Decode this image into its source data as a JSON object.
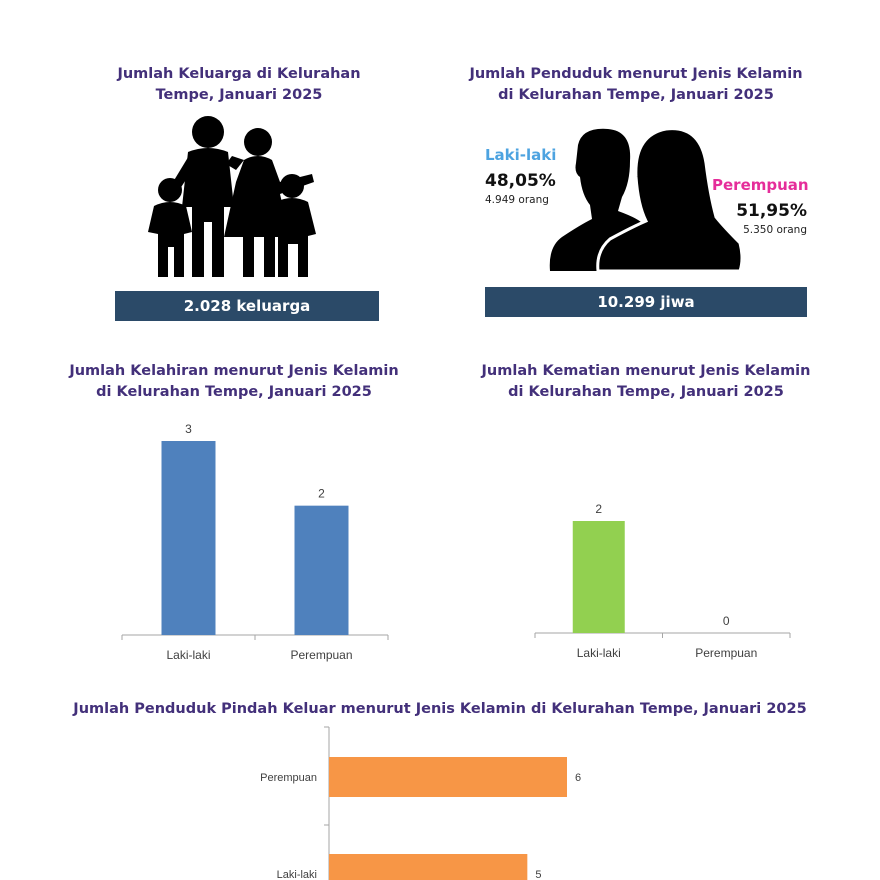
{
  "families": {
    "title": "Jumlah Keluarga di Kelurahan\nTempe, Januari 2025",
    "banner": "2.028 keluarga",
    "icon": "family-icon"
  },
  "population": {
    "title": "Jumlah Penduduk menurut Jenis Kelamin\ndi Kelurahan Tempe, Januari 2025",
    "male_label": "Laki-laki",
    "male_percent": "48,05%",
    "male_count": "4.949 orang",
    "female_label": "Perempuan",
    "female_percent": "51,95%",
    "female_count": "5.350 orang",
    "banner": "10.299 jiwa",
    "icon": "male-female-silhouette-icon",
    "colors": {
      "male": "#4da3e0",
      "female": "#e52d9a",
      "banner": "#2b4a68"
    }
  },
  "chart_data": [
    {
      "id": "births",
      "type": "bar",
      "title": "Jumlah Kelahiran menurut Jenis Kelamin\ndi Kelurahan Tempe, Januari 2025",
      "categories": [
        "Laki-laki",
        "Perempuan"
      ],
      "values": [
        3,
        2
      ],
      "color": "#4f81bd",
      "ylim": [
        0,
        3
      ]
    },
    {
      "id": "deaths",
      "type": "bar",
      "title": "Jumlah Kematian menurut Jenis Kelamin\ndi Kelurahan Tempe, Januari 2025",
      "categories": [
        "Laki-laki",
        "Perempuan"
      ],
      "values": [
        2,
        0
      ],
      "color": "#92d050",
      "ylim": [
        0,
        2.5
      ]
    },
    {
      "id": "moved_out",
      "type": "bar",
      "orientation": "horizontal",
      "title": "Jumlah Penduduk Pindah Keluar menurut Jenis Kelamin di Kelurahan Tempe, Januari 2025",
      "categories": [
        "Perempuan",
        "Laki-laki"
      ],
      "values": [
        6,
        5
      ],
      "color": "#f79646",
      "xlim": [
        0,
        6
      ]
    }
  ]
}
